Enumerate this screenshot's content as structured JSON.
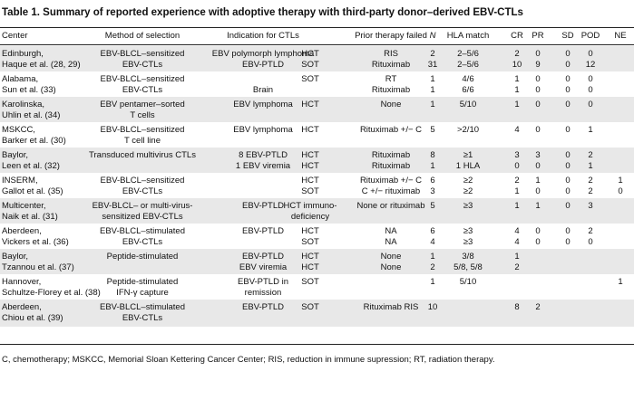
{
  "title": "Table 1. Summary of reported experience with adoptive therapy with third-party donor–derived EBV-CTLs",
  "columns": [
    "Center",
    "Method of selection",
    "Indication for CTLs",
    "",
    "Prior therapy failed",
    "N",
    "HLA match",
    "CR",
    "PR",
    "SD",
    "POD",
    "NE"
  ],
  "groups": [
    {
      "shade": true,
      "rows": [
        [
          "Edinburgh,",
          "EBV-BLCL–sensitized",
          "EBV polymorph lymphoma",
          "HCT",
          "RIS",
          "2",
          "2–5/6",
          "2",
          "0",
          "0",
          "0",
          ""
        ],
        [
          "Haque et al. (28, 29)",
          "EBV-CTLs",
          "EBV-PTLD",
          "SOT",
          "Rituximab",
          "31",
          "2–5/6",
          "10",
          "9",
          "0",
          "12",
          ""
        ]
      ]
    },
    {
      "shade": false,
      "rows": [
        [
          "Alabama,",
          "EBV-BLCL–sensitized",
          "",
          "SOT",
          "RT",
          "1",
          "4/6",
          "1",
          "0",
          "0",
          "0",
          ""
        ],
        [
          "Sun et al. (33)",
          "EBV-CTLs",
          "Brain",
          "",
          "Rituximab",
          "1",
          "6/6",
          "1",
          "0",
          "0",
          "0",
          ""
        ]
      ]
    },
    {
      "shade": true,
      "rows": [
        [
          "Karolinska,",
          "EBV pentamer–sorted",
          "EBV lymphoma",
          "HCT",
          "None",
          "1",
          "5/10",
          "1",
          "0",
          "0",
          "0",
          ""
        ],
        [
          "Uhlin et al. (34)",
          "T cells",
          "",
          "",
          "",
          "",
          "",
          "",
          "",
          "",
          "",
          ""
        ]
      ]
    },
    {
      "shade": false,
      "rows": [
        [
          "MSKCC,",
          "EBV-BLCL–sensitized",
          "EBV lymphoma",
          "HCT",
          "Rituximab +/− C",
          "5",
          ">2/10",
          "4",
          "0",
          "0",
          "1",
          ""
        ],
        [
          "Barker et al. (30)",
          "T cell line",
          "",
          "",
          "",
          "",
          "",
          "",
          "",
          "",
          "",
          ""
        ]
      ]
    },
    {
      "shade": true,
      "rows": [
        [
          "Baylor,",
          "Transduced multivirus CTLs",
          "8 EBV-PTLD",
          "HCT",
          "Rituximab",
          "8",
          "≥1",
          "3",
          "3",
          "0",
          "2",
          ""
        ],
        [
          "Leen et al. (32)",
          "",
          "1 EBV viremia",
          "HCT",
          "Rituximab",
          "1",
          "1 HLA",
          "0",
          "0",
          "0",
          "1",
          ""
        ]
      ]
    },
    {
      "shade": false,
      "rows": [
        [
          "INSERM,",
          "EBV-BLCL–sensitized",
          "",
          "HCT",
          "Rituximab +/− C",
          "6",
          "≥2",
          "2",
          "1",
          "0",
          "2",
          "1"
        ],
        [
          "Gallot et al. (35)",
          "EBV-CTLs",
          "",
          "SOT",
          "C +/− rituximab",
          "3",
          "≥2",
          "1",
          "0",
          "0",
          "2",
          "0"
        ]
      ]
    },
    {
      "shade": true,
      "rows": [
        [
          "Multicenter,",
          "EBV-BLCL– or multi-virus-",
          "EBV-PTLD",
          "HCT immuno-",
          "None or rituximab",
          "5",
          "≥3",
          "1",
          "1",
          "0",
          "3",
          ""
        ],
        [
          "Naik et al. (31)",
          "sensitized EBV-CTLs",
          "",
          "deficiency",
          "",
          "",
          "",
          "",
          "",
          "",
          "",
          ""
        ]
      ]
    },
    {
      "shade": false,
      "rows": [
        [
          "Aberdeen,",
          "EBV-BLCL–stimulated",
          "EBV-PTLD",
          "HCT",
          "NA",
          "6",
          "≥3",
          "4",
          "0",
          "0",
          "2",
          ""
        ],
        [
          "Vickers et al. (36)",
          "EBV-CTLs",
          "",
          "SOT",
          "NA",
          "4",
          "≥3",
          "4",
          "0",
          "0",
          "0",
          ""
        ]
      ]
    },
    {
      "shade": true,
      "rows": [
        [
          "Baylor,",
          "Peptide-stimulated",
          "EBV-PTLD",
          "HCT",
          "None",
          "1",
          "3/8",
          "1",
          "",
          "",
          "",
          ""
        ],
        [
          "Tzannou et al. (37)",
          "",
          "EBV viremia",
          "HCT",
          "None",
          "2",
          "5/8, 5/8",
          "2",
          "",
          "",
          "",
          ""
        ]
      ]
    },
    {
      "shade": false,
      "rows": [
        [
          "Hannover,",
          "Peptide-stimulated",
          "EBV-PTLD in",
          "SOT",
          "",
          "1",
          "5/10",
          "",
          "",
          "",
          "",
          "1"
        ],
        [
          "Schultze-Florey et al. (38)",
          "IFN-γ capture",
          "remission",
          "",
          "",
          "",
          "",
          "",
          "",
          "",
          "",
          ""
        ]
      ]
    },
    {
      "shade": true,
      "rows": [
        [
          "Aberdeen,",
          "EBV-BLCL–stimulated",
          "EBV-PTLD",
          "SOT",
          "Rituximab RIS",
          "10",
          "",
          "8",
          "2",
          "",
          "",
          ""
        ],
        [
          "Chiou et al. (39)",
          "EBV-CTLs",
          "",
          "",
          "",
          "",
          "",
          "",
          "",
          "",
          "",
          ""
        ]
      ]
    }
  ],
  "footnote": "C, chemotherapy; MSKCC, Memorial Sloan Kettering Cancer Center; RIS, reduction in immune supression; RT, radiation therapy."
}
